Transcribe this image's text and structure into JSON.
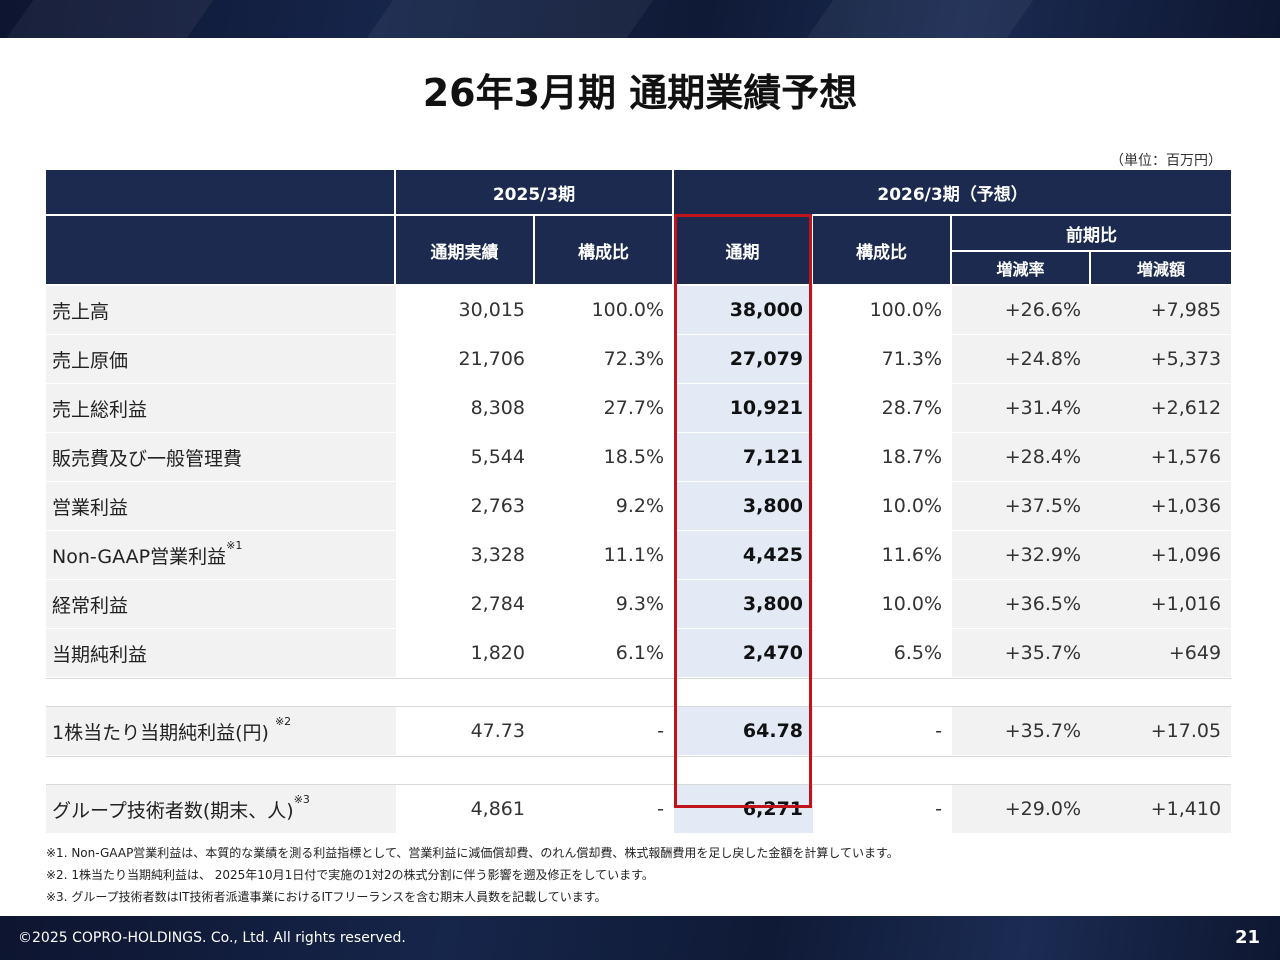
{
  "title": "26年3月期 通期業績予想",
  "unit_note": "（単位：百万円）",
  "table": {
    "header": {
      "fy2025": "2025/3期",
      "fy2026": "2026/3期（予想）",
      "actual": "通期実績",
      "ratio": "構成比",
      "full_year": "通期",
      "ratio2": "構成比",
      "yoy": "前期比",
      "change_rate": "増減率",
      "change_amount": "増減額"
    },
    "rows": [
      {
        "label": "売上高",
        "sup": "",
        "a": "30,015",
        "r": "100.0%",
        "f": "38,000",
        "r2": "100.0%",
        "cr": "+26.6%",
        "ca": "+7,985"
      },
      {
        "label": "売上原価",
        "sup": "",
        "a": "21,706",
        "r": "72.3%",
        "f": "27,079",
        "r2": "71.3%",
        "cr": "+24.8%",
        "ca": "+5,373"
      },
      {
        "label": "売上総利益",
        "sup": "",
        "a": "8,308",
        "r": "27.7%",
        "f": "10,921",
        "r2": "28.7%",
        "cr": "+31.4%",
        "ca": "+2,612"
      },
      {
        "label": "販売費及び一般管理費",
        "sup": "",
        "a": "5,544",
        "r": "18.5%",
        "f": "7,121",
        "r2": "18.7%",
        "cr": "+28.4%",
        "ca": "+1,576"
      },
      {
        "label": "営業利益",
        "sup": "",
        "a": "2,763",
        "r": "9.2%",
        "f": "3,800",
        "r2": "10.0%",
        "cr": "+37.5%",
        "ca": "+1,036"
      },
      {
        "label": "Non-GAAP営業利益",
        "sup": "※1",
        "a": "3,328",
        "r": "11.1%",
        "f": "4,425",
        "r2": "11.6%",
        "cr": "+32.9%",
        "ca": "+1,096"
      },
      {
        "label": "経常利益",
        "sup": "",
        "a": "2,784",
        "r": "9.3%",
        "f": "3,800",
        "r2": "10.0%",
        "cr": "+36.5%",
        "ca": "+1,016"
      },
      {
        "label": "当期純利益",
        "sup": "",
        "a": "1,820",
        "r": "6.1%",
        "f": "2,470",
        "r2": "6.5%",
        "cr": "+35.7%",
        "ca": "+649"
      }
    ],
    "eps": {
      "label": "1株当たり当期純利益(円) ",
      "sup": "※2",
      "a": "47.73",
      "r": "-",
      "f": "64.78",
      "r2": "-",
      "cr": "+35.7%",
      "ca": "+17.05"
    },
    "engineers": {
      "label": "グループ技術者数(期末、人)",
      "sup": "※3",
      "a": "4,861",
      "r": "-",
      "f": "6,271",
      "r2": "-",
      "cr": "+29.0%",
      "ca": "+1,410"
    }
  },
  "notes": [
    "※1. Non-GAAP営業利益は、本質的な業績を測る利益指標として、営業利益に減価償却費、のれん償却費、株式報酬費用を足し戻した金額を計算しています。",
    "※2. 1株当たり当期純利益は、 2025年10月1日付で実施の1対2の株式分割に伴う影響を遡及修正をしています。",
    "※3. グループ技術者数はIT技術者派遣事業におけるITフリーランスを含む期末人員数を記載しています。"
  ],
  "footer": {
    "copyright": "©2025 COPRO-HOLDINGS. Co., Ltd. All rights reserved.",
    "page": "21"
  },
  "colors": {
    "header_navy": "#1b2a4e",
    "highlight_blue": "#e3eaf6",
    "box_red": "#c0141c"
  }
}
